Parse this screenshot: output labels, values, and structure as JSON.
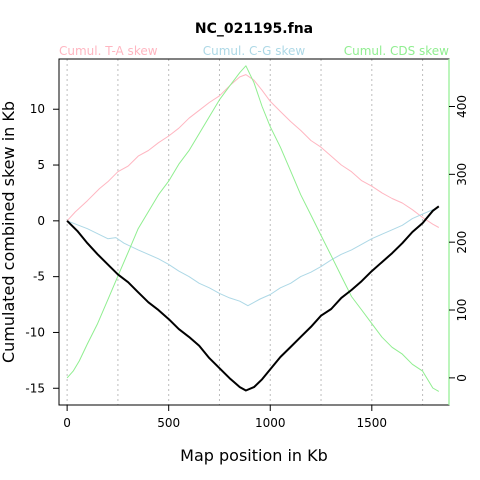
{
  "chart_data": {
    "type": "line",
    "title": "NC_021195.fna",
    "xlabel": "Map position in Kb",
    "ylabel": "Cumulated combined skew in Kb",
    "xlim": [
      -40,
      1880
    ],
    "ylim": [
      -16.5,
      14.5
    ],
    "xticks": [
      0,
      500,
      1000,
      1500
    ],
    "yticks": [
      -15,
      -10,
      -5,
      0,
      5,
      10
    ],
    "y2lim": [
      -40,
      470
    ],
    "y2ticks": [
      0,
      100,
      200,
      300,
      400
    ],
    "vgrid": [
      0,
      250,
      500,
      750,
      1000,
      1250,
      1500,
      1750
    ],
    "legend_position": "top",
    "series": [
      {
        "name": "Cumul. T-A skew",
        "color": "#ffb6c1",
        "axis": "left",
        "x": [
          0,
          40,
          100,
          160,
          200,
          250,
          300,
          350,
          400,
          450,
          500,
          550,
          600,
          650,
          700,
          750,
          800,
          850,
          880,
          920,
          960,
          1000,
          1050,
          1100,
          1150,
          1200,
          1250,
          1300,
          1350,
          1400,
          1450,
          1500,
          1550,
          1600,
          1650,
          1700,
          1750,
          1800,
          1830
        ],
        "values": [
          0,
          0.8,
          1.8,
          2.9,
          3.5,
          4.4,
          4.9,
          5.8,
          6.3,
          7.0,
          7.6,
          8.3,
          9.2,
          9.9,
          10.6,
          11.2,
          12.1,
          12.9,
          13.1,
          12.6,
          11.7,
          10.7,
          9.8,
          8.9,
          8.1,
          7.2,
          6.6,
          5.8,
          5.0,
          4.4,
          3.6,
          3.1,
          2.5,
          2.0,
          1.6,
          1.0,
          0.3,
          -0.3,
          -0.6
        ]
      },
      {
        "name": "Cumul. C-G skew",
        "color": "#add8e6",
        "axis": "left",
        "x": [
          0,
          100,
          200,
          240,
          280,
          350,
          450,
          500,
          550,
          600,
          650,
          700,
          750,
          800,
          850,
          890,
          950,
          1000,
          1050,
          1100,
          1150,
          1200,
          1250,
          1300,
          1350,
          1400,
          1450,
          1500,
          1550,
          1600,
          1650,
          1700,
          1750,
          1800,
          1830
        ],
        "values": [
          0,
          -0.7,
          -1.6,
          -1.5,
          -2.0,
          -2.6,
          -3.4,
          -3.9,
          -4.5,
          -5.0,
          -5.6,
          -6.0,
          -6.5,
          -6.9,
          -7.2,
          -7.6,
          -7.0,
          -6.6,
          -6.0,
          -5.6,
          -5.0,
          -4.6,
          -4.1,
          -3.5,
          -3.0,
          -2.6,
          -2.1,
          -1.6,
          -1.2,
          -0.8,
          -0.4,
          0.2,
          0.6,
          1.0,
          1.2
        ]
      },
      {
        "name": "Cumul. CDS skew",
        "color": "#90ee90",
        "axis": "right",
        "x": [
          0,
          30,
          60,
          100,
          150,
          200,
          250,
          300,
          350,
          400,
          450,
          500,
          550,
          600,
          650,
          700,
          750,
          800,
          850,
          880,
          920,
          960,
          1000,
          1050,
          1100,
          1150,
          1200,
          1250,
          1300,
          1350,
          1400,
          1450,
          1500,
          1550,
          1600,
          1650,
          1700,
          1750,
          1800,
          1830
        ],
        "values": [
          0,
          10,
          25,
          50,
          80,
          115,
          150,
          185,
          220,
          245,
          270,
          290,
          315,
          335,
          360,
          385,
          410,
          430,
          450,
          460,
          435,
          400,
          370,
          340,
          305,
          270,
          240,
          210,
          180,
          150,
          120,
          100,
          80,
          60,
          45,
          35,
          20,
          10,
          -15,
          -20
        ]
      },
      {
        "name": "",
        "color": "#000000",
        "axis": "left",
        "x": [
          0,
          50,
          100,
          150,
          200,
          250,
          300,
          350,
          400,
          450,
          500,
          550,
          600,
          650,
          700,
          750,
          800,
          850,
          880,
          920,
          960,
          1000,
          1050,
          1100,
          1150,
          1200,
          1250,
          1300,
          1350,
          1400,
          1450,
          1500,
          1550,
          1600,
          1650,
          1700,
          1750,
          1800,
          1830
        ],
        "values": [
          0,
          -0.9,
          -2.0,
          -3.0,
          -3.9,
          -4.8,
          -5.5,
          -6.4,
          -7.3,
          -8.0,
          -8.8,
          -9.7,
          -10.4,
          -11.2,
          -12.3,
          -13.2,
          -14.1,
          -14.9,
          -15.2,
          -14.9,
          -14.2,
          -13.3,
          -12.2,
          -11.3,
          -10.4,
          -9.5,
          -8.5,
          -7.9,
          -6.9,
          -6.2,
          -5.4,
          -4.5,
          -3.7,
          -2.9,
          -2.0,
          -1.0,
          -0.2,
          0.9,
          1.3
        ]
      }
    ]
  }
}
